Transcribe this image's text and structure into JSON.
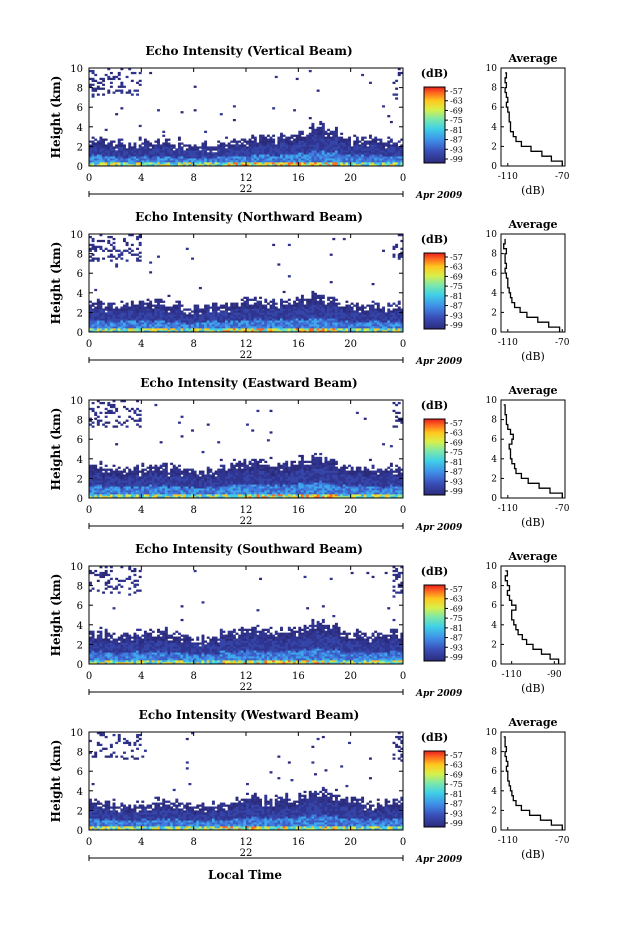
{
  "figure": {
    "xlabel_bottom": "Local Time",
    "colorbar_unit": "(dB)",
    "colorbar_ticks": [
      "-57",
      "-63",
      "-69",
      "-75",
      "-81",
      "-87",
      "-93",
      "-99"
    ],
    "average_title": "Average",
    "average_xlabel": "(dB)",
    "ylabel": "Height (km)"
  },
  "chart_data": [
    {
      "type": "heatmap",
      "title": "Echo Intensity (Vertical Beam)",
      "ylabel": "Height (km)",
      "x_ticks": [
        "0",
        "4",
        "8",
        "12",
        "16",
        "20",
        "0"
      ],
      "y_ticks": [
        "0",
        "2",
        "4",
        "6",
        "8",
        "10"
      ],
      "xlim": [
        0,
        24
      ],
      "ylim": [
        0,
        10
      ],
      "date_day": "22",
      "date_month": "Apr 2009",
      "colorbar": {
        "unit": "(dB)",
        "ticks": [
          -57,
          -63,
          -69,
          -75,
          -81,
          -87,
          -93,
          -99
        ]
      },
      "echo_top_km": [
        2.8,
        2.6,
        2.4,
        2.4,
        2.5,
        2.6,
        2.5,
        2.3,
        2.2,
        2.3,
        2.6,
        2.7,
        2.8,
        3.0,
        3.0,
        3.1,
        3.6,
        4.2,
        3.8,
        3.0,
        2.8,
        2.7,
        2.6,
        2.7
      ],
      "average": {
        "title": "Average",
        "xlabel": "(dB)",
        "xticks": [
          "-110",
          "-70"
        ],
        "xlim": [
          -115,
          -68
        ],
        "height_km": [
          0,
          0.5,
          1,
          1.5,
          2,
          2.5,
          3,
          3.5,
          4,
          4.5,
          5,
          5.5,
          6,
          6.5,
          7,
          7.5,
          8,
          8.5,
          9,
          9.5
        ],
        "db": [
          -70,
          -78,
          -85,
          -93,
          -100,
          -104,
          -106,
          -108,
          -108,
          -109,
          -109,
          -110,
          -111,
          -110,
          -111,
          -112,
          -111,
          -112,
          -111,
          -112
        ]
      }
    },
    {
      "type": "heatmap",
      "title": "Echo Intensity (Northward Beam)",
      "ylabel": "Height (km)",
      "x_ticks": [
        "0",
        "4",
        "8",
        "12",
        "16",
        "20",
        "0"
      ],
      "y_ticks": [
        "0",
        "2",
        "4",
        "6",
        "8",
        "10"
      ],
      "xlim": [
        0,
        24
      ],
      "ylim": [
        0,
        10
      ],
      "date_day": "22",
      "date_month": "Apr 2009",
      "colorbar": {
        "unit": "(dB)",
        "ticks": [
          -57,
          -63,
          -69,
          -75,
          -81,
          -87,
          -93,
          -99
        ]
      },
      "echo_top_km": [
        3.0,
        2.8,
        2.7,
        2.8,
        2.9,
        3.0,
        2.7,
        2.4,
        2.4,
        2.6,
        2.9,
        3.2,
        3.4,
        3.3,
        3.2,
        3.2,
        3.6,
        4.0,
        3.6,
        3.1,
        2.8,
        2.7,
        2.8,
        3.0
      ],
      "average": {
        "title": "Average",
        "xlabel": "(dB)",
        "xticks": [
          "-110",
          "-70"
        ],
        "xlim": [
          -115,
          -68
        ],
        "height_km": [
          0,
          0.5,
          1,
          1.5,
          2,
          2.5,
          3,
          3.5,
          4,
          4.5,
          5,
          5.5,
          6,
          6.5,
          7,
          7.5,
          8,
          8.5,
          9,
          9.5
        ],
        "db": [
          -72,
          -80,
          -88,
          -96,
          -101,
          -105,
          -107,
          -108,
          -109,
          -110,
          -110,
          -111,
          -112,
          -111,
          -112,
          -112,
          -111,
          -113,
          -112,
          -112
        ]
      }
    },
    {
      "type": "heatmap",
      "title": "Echo Intensity (Eastward Beam)",
      "ylabel": "Height (km)",
      "x_ticks": [
        "0",
        "4",
        "8",
        "12",
        "16",
        "20",
        "0"
      ],
      "y_ticks": [
        "0",
        "2",
        "4",
        "6",
        "8",
        "10"
      ],
      "xlim": [
        0,
        24
      ],
      "ylim": [
        0,
        10
      ],
      "date_day": "22",
      "date_month": "Apr 2009",
      "colorbar": {
        "unit": "(dB)",
        "ticks": [
          -57,
          -63,
          -69,
          -75,
          -81,
          -87,
          -93,
          -99
        ]
      },
      "echo_top_km": [
        3.4,
        3.2,
        3.0,
        3.0,
        3.2,
        3.4,
        3.0,
        2.7,
        2.6,
        2.8,
        3.2,
        3.6,
        3.8,
        3.6,
        3.4,
        3.6,
        3.9,
        4.4,
        4.0,
        3.5,
        3.2,
        3.0,
        3.0,
        3.2
      ],
      "average": {
        "title": "Average",
        "xlabel": "(dB)",
        "xticks": [
          "-110",
          "-70"
        ],
        "xlim": [
          -115,
          -68
        ],
        "height_km": [
          0,
          0.5,
          1,
          1.5,
          2,
          2.5,
          3,
          3.5,
          4,
          4.5,
          5,
          5.5,
          6,
          6.5,
          7,
          7.5,
          8,
          8.5,
          9,
          9.5
        ],
        "db": [
          -70,
          -79,
          -87,
          -95,
          -100,
          -104,
          -105,
          -107,
          -108,
          -108,
          -109,
          -107,
          -106,
          -108,
          -110,
          -111,
          -111,
          -112,
          -112,
          -113
        ]
      }
    },
    {
      "type": "heatmap",
      "title": "Echo Intensity (Southward Beam)",
      "ylabel": "Height (km)",
      "x_ticks": [
        "0",
        "4",
        "8",
        "12",
        "16",
        "20",
        "0"
      ],
      "y_ticks": [
        "0",
        "2",
        "4",
        "6",
        "8",
        "10"
      ],
      "xlim": [
        0,
        24
      ],
      "ylim": [
        0,
        10
      ],
      "date_day": "22",
      "date_month": "Apr 2009",
      "colorbar": {
        "unit": "(dB)",
        "ticks": [
          -57,
          -63,
          -69,
          -75,
          -81,
          -87,
          -93,
          -99
        ]
      },
      "echo_top_km": [
        3.4,
        3.2,
        3.0,
        3.1,
        3.2,
        3.4,
        3.0,
        2.7,
        2.6,
        2.8,
        3.2,
        3.5,
        3.7,
        3.6,
        3.5,
        3.6,
        3.9,
        4.3,
        3.9,
        3.4,
        3.1,
        3.0,
        3.1,
        3.2
      ],
      "average": {
        "title": "Average",
        "xlabel": "(dB)",
        "xticks": [
          "-110",
          "-90"
        ],
        "xlim": [
          -115,
          -85
        ],
        "height_km": [
          0,
          0.5,
          1,
          1.5,
          2,
          2.5,
          3,
          3.5,
          4,
          4.5,
          5,
          5.5,
          6,
          6.5,
          7,
          7.5,
          8,
          8.5,
          9,
          9.5
        ],
        "db": [
          -88,
          -92,
          -96,
          -100,
          -103,
          -105,
          -107,
          -108,
          -109,
          -110,
          -110,
          -108,
          -110,
          -111,
          -112,
          -111,
          -112,
          -113,
          -112,
          -113
        ]
      }
    },
    {
      "type": "heatmap",
      "title": "Echo Intensity (Westward Beam)",
      "ylabel": "Height (km)",
      "x_ticks": [
        "0",
        "4",
        "8",
        "12",
        "16",
        "20",
        "0"
      ],
      "y_ticks": [
        "0",
        "2",
        "4",
        "6",
        "8",
        "10"
      ],
      "xlim": [
        0,
        24
      ],
      "ylim": [
        0,
        10
      ],
      "date_day": "22",
      "date_month": "Apr 2009",
      "colorbar": {
        "unit": "(dB)",
        "ticks": [
          -57,
          -63,
          -69,
          -75,
          -81,
          -87,
          -93,
          -99
        ]
      },
      "echo_top_km": [
        3.0,
        2.8,
        2.6,
        2.6,
        2.8,
        3.0,
        2.7,
        2.4,
        2.4,
        2.6,
        2.9,
        3.2,
        3.4,
        3.3,
        3.2,
        3.4,
        3.7,
        4.2,
        3.8,
        3.2,
        2.9,
        2.8,
        2.8,
        3.0
      ],
      "average": {
        "title": "Average",
        "xlabel": "(dB)",
        "xticks": [
          "-110",
          "-70"
        ],
        "xlim": [
          -115,
          -68
        ],
        "height_km": [
          0,
          0.5,
          1,
          1.5,
          2,
          2.5,
          3,
          3.5,
          4,
          4.5,
          5,
          5.5,
          6,
          6.5,
          7,
          7.5,
          8,
          8.5,
          9,
          9.5
        ],
        "db": [
          -70,
          -78,
          -86,
          -94,
          -100,
          -104,
          -106,
          -107,
          -108,
          -109,
          -110,
          -110,
          -111,
          -110,
          -111,
          -112,
          -111,
          -112,
          -112,
          -113
        ]
      }
    }
  ]
}
